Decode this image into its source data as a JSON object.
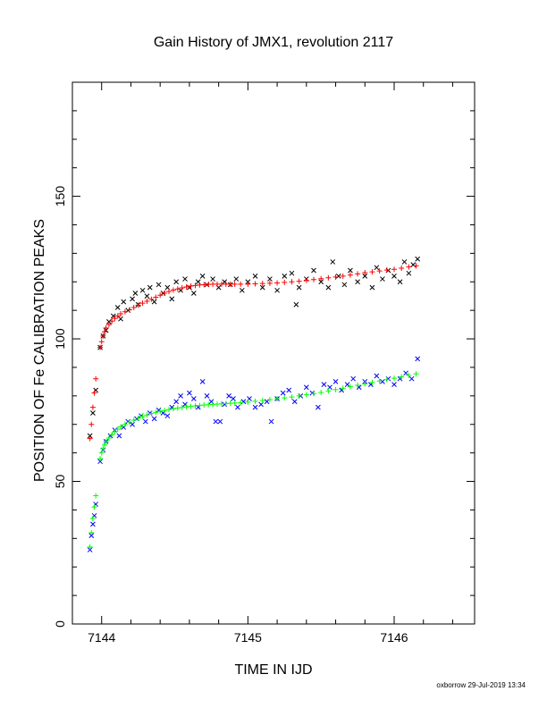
{
  "chart_data": {
    "type": "scatter",
    "title": "Gain History of JMX1, revolution 2117",
    "xlabel": "TIME IN IJD",
    "ylabel": "POSITION OF Fe CALIBRATION PEAKS",
    "xlim": [
      7143.8,
      7146.55
    ],
    "ylim": [
      0,
      190
    ],
    "x_ticks": [
      7144,
      7145,
      7146
    ],
    "y_ticks": [
      0,
      50,
      100,
      150
    ],
    "grid": false,
    "footer": "oxborrow 29-Jul-2019 13:34",
    "series": [
      {
        "marker": "x",
        "color": "#000000",
        "points": [
          [
            7143.92,
            66
          ],
          [
            7143.94,
            74
          ],
          [
            7143.96,
            82
          ],
          [
            7143.99,
            97
          ],
          [
            7144.01,
            101
          ],
          [
            7144.03,
            103
          ],
          [
            7144.05,
            106
          ],
          [
            7144.08,
            108
          ],
          [
            7144.11,
            111
          ],
          [
            7144.13,
            107
          ],
          [
            7144.15,
            113
          ],
          [
            7144.18,
            110
          ],
          [
            7144.21,
            114
          ],
          [
            7144.23,
            116
          ],
          [
            7144.25,
            112
          ],
          [
            7144.28,
            117
          ],
          [
            7144.31,
            115
          ],
          [
            7144.33,
            118
          ],
          [
            7144.36,
            113
          ],
          [
            7144.39,
            119
          ],
          [
            7144.42,
            116
          ],
          [
            7144.45,
            118
          ],
          [
            7144.48,
            114
          ],
          [
            7144.51,
            120
          ],
          [
            7144.54,
            117
          ],
          [
            7144.57,
            121
          ],
          [
            7144.6,
            118
          ],
          [
            7144.63,
            116
          ],
          [
            7144.66,
            120
          ],
          [
            7144.69,
            122
          ],
          [
            7144.72,
            119
          ],
          [
            7144.76,
            121
          ],
          [
            7144.8,
            118
          ],
          [
            7144.84,
            120
          ],
          [
            7144.88,
            119
          ],
          [
            7144.92,
            121
          ],
          [
            7144.96,
            117
          ],
          [
            7145.0,
            120
          ],
          [
            7145.05,
            122
          ],
          [
            7145.1,
            118
          ],
          [
            7145.15,
            121
          ],
          [
            7145.2,
            117
          ],
          [
            7145.25,
            122
          ],
          [
            7145.3,
            123
          ],
          [
            7145.33,
            112
          ],
          [
            7145.35,
            118
          ],
          [
            7145.4,
            121
          ],
          [
            7145.45,
            124
          ],
          [
            7145.5,
            120
          ],
          [
            7145.55,
            118
          ],
          [
            7145.58,
            127
          ],
          [
            7145.62,
            122
          ],
          [
            7145.66,
            119
          ],
          [
            7145.7,
            124
          ],
          [
            7145.75,
            120
          ],
          [
            7145.8,
            122
          ],
          [
            7145.85,
            118
          ],
          [
            7145.88,
            125
          ],
          [
            7145.92,
            121
          ],
          [
            7145.96,
            124
          ],
          [
            7146.0,
            122
          ],
          [
            7146.04,
            120
          ],
          [
            7146.07,
            127
          ],
          [
            7146.1,
            123
          ],
          [
            7146.13,
            126
          ],
          [
            7146.16,
            128
          ]
        ]
      },
      {
        "marker": "+",
        "color": "#ff0000",
        "points": [
          [
            7143.92,
            65
          ],
          [
            7143.93,
            70
          ],
          [
            7143.94,
            76
          ],
          [
            7143.95,
            81
          ],
          [
            7143.96,
            86
          ],
          [
            7143.99,
            97
          ],
          [
            7144.0,
            99
          ],
          [
            7144.01,
            101
          ],
          [
            7144.02,
            102.5
          ],
          [
            7144.03,
            103.8
          ],
          [
            7144.05,
            105
          ],
          [
            7144.07,
            106.2
          ],
          [
            7144.09,
            107.2
          ],
          [
            7144.11,
            108
          ],
          [
            7144.13,
            108.8
          ],
          [
            7144.16,
            109.5
          ],
          [
            7144.19,
            110.2
          ],
          [
            7144.22,
            111
          ],
          [
            7144.25,
            111.8
          ],
          [
            7144.28,
            112.5
          ],
          [
            7144.31,
            113.2
          ],
          [
            7144.34,
            113.9
          ],
          [
            7144.37,
            114.6
          ],
          [
            7144.4,
            115.3
          ],
          [
            7144.43,
            116
          ],
          [
            7144.46,
            116.6
          ],
          [
            7144.49,
            117.1
          ],
          [
            7144.52,
            117.5
          ],
          [
            7144.55,
            117.9
          ],
          [
            7144.58,
            118.2
          ],
          [
            7144.61,
            118.5
          ],
          [
            7144.64,
            118.7
          ],
          [
            7144.67,
            118.9
          ],
          [
            7144.7,
            119
          ],
          [
            7144.73,
            119.1
          ],
          [
            7144.76,
            119.2
          ],
          [
            7144.79,
            119.2
          ],
          [
            7144.82,
            119.2
          ],
          [
            7144.85,
            119.2
          ],
          [
            7144.88,
            119.2
          ],
          [
            7144.91,
            119.2
          ],
          [
            7144.95,
            119.2
          ],
          [
            7145.0,
            119.2
          ],
          [
            7145.05,
            119.3
          ],
          [
            7145.1,
            119.4
          ],
          [
            7145.15,
            119.5
          ],
          [
            7145.2,
            119.6
          ],
          [
            7145.25,
            119.8
          ],
          [
            7145.3,
            120
          ],
          [
            7145.35,
            120.2
          ],
          [
            7145.4,
            120.5
          ],
          [
            7145.45,
            120.8
          ],
          [
            7145.5,
            121.1
          ],
          [
            7145.55,
            121.4
          ],
          [
            7145.6,
            121.7
          ],
          [
            7145.65,
            122
          ],
          [
            7145.7,
            122.4
          ],
          [
            7145.75,
            122.8
          ],
          [
            7145.8,
            123.2
          ],
          [
            7145.85,
            123.5
          ],
          [
            7145.9,
            123.8
          ],
          [
            7145.95,
            124.1
          ],
          [
            7146.0,
            124.4
          ],
          [
            7146.05,
            124.8
          ],
          [
            7146.1,
            125.2
          ],
          [
            7146.15,
            125.6
          ]
        ]
      },
      {
        "marker": "x",
        "color": "#0000ff",
        "points": [
          [
            7143.92,
            26
          ],
          [
            7143.93,
            31
          ],
          [
            7143.94,
            35
          ],
          [
            7143.95,
            38
          ],
          [
            7143.96,
            42
          ],
          [
            7143.99,
            57
          ],
          [
            7144.01,
            61
          ],
          [
            7144.03,
            64
          ],
          [
            7144.06,
            66
          ],
          [
            7144.09,
            68
          ],
          [
            7144.12,
            66
          ],
          [
            7144.15,
            69
          ],
          [
            7144.18,
            71
          ],
          [
            7144.21,
            70
          ],
          [
            7144.24,
            72
          ],
          [
            7144.27,
            73
          ],
          [
            7144.3,
            71
          ],
          [
            7144.33,
            74
          ],
          [
            7144.36,
            72
          ],
          [
            7144.39,
            75
          ],
          [
            7144.42,
            74
          ],
          [
            7144.45,
            73
          ],
          [
            7144.48,
            76
          ],
          [
            7144.51,
            78
          ],
          [
            7144.54,
            80
          ],
          [
            7144.57,
            77
          ],
          [
            7144.6,
            81
          ],
          [
            7144.63,
            79
          ],
          [
            7144.66,
            76
          ],
          [
            7144.69,
            85
          ],
          [
            7144.72,
            80
          ],
          [
            7144.75,
            78
          ],
          [
            7144.78,
            71
          ],
          [
            7144.81,
            71
          ],
          [
            7144.84,
            77
          ],
          [
            7144.87,
            80
          ],
          [
            7144.9,
            79
          ],
          [
            7144.93,
            76
          ],
          [
            7144.97,
            78
          ],
          [
            7145.01,
            79
          ],
          [
            7145.05,
            76
          ],
          [
            7145.09,
            77
          ],
          [
            7145.13,
            78
          ],
          [
            7145.16,
            71
          ],
          [
            7145.2,
            79
          ],
          [
            7145.24,
            81
          ],
          [
            7145.28,
            82
          ],
          [
            7145.32,
            78
          ],
          [
            7145.36,
            80
          ],
          [
            7145.4,
            83
          ],
          [
            7145.44,
            81
          ],
          [
            7145.48,
            76
          ],
          [
            7145.52,
            84
          ],
          [
            7145.56,
            83
          ],
          [
            7145.6,
            85
          ],
          [
            7145.64,
            82
          ],
          [
            7145.68,
            84
          ],
          [
            7145.72,
            86
          ],
          [
            7145.76,
            83
          ],
          [
            7145.8,
            85
          ],
          [
            7145.84,
            84
          ],
          [
            7145.88,
            87
          ],
          [
            7145.92,
            85
          ],
          [
            7145.96,
            86
          ],
          [
            7146.0,
            84
          ],
          [
            7146.04,
            86
          ],
          [
            7146.08,
            88
          ],
          [
            7146.12,
            86
          ],
          [
            7146.16,
            93
          ]
        ]
      },
      {
        "marker": "+",
        "color": "#00ff00",
        "points": [
          [
            7143.92,
            27
          ],
          [
            7143.93,
            32
          ],
          [
            7143.94,
            37
          ],
          [
            7143.95,
            41
          ],
          [
            7143.96,
            45
          ],
          [
            7143.99,
            58
          ],
          [
            7144.0,
            60
          ],
          [
            7144.01,
            61.5
          ],
          [
            7144.02,
            62.8
          ],
          [
            7144.03,
            64
          ],
          [
            7144.05,
            65.2
          ],
          [
            7144.07,
            66.4
          ],
          [
            7144.09,
            67.4
          ],
          [
            7144.11,
            68.3
          ],
          [
            7144.13,
            69.1
          ],
          [
            7144.16,
            70
          ],
          [
            7144.19,
            70.8
          ],
          [
            7144.22,
            71.5
          ],
          [
            7144.25,
            72.2
          ],
          [
            7144.28,
            72.8
          ],
          [
            7144.31,
            73.3
          ],
          [
            7144.34,
            73.8
          ],
          [
            7144.37,
            74.2
          ],
          [
            7144.4,
            74.6
          ],
          [
            7144.43,
            74.9
          ],
          [
            7144.46,
            75.2
          ],
          [
            7144.49,
            75.5
          ],
          [
            7144.52,
            75.7
          ],
          [
            7144.55,
            75.9
          ],
          [
            7144.58,
            76.1
          ],
          [
            7144.61,
            76.3
          ],
          [
            7144.64,
            76.5
          ],
          [
            7144.67,
            76.6
          ],
          [
            7144.7,
            76.8
          ],
          [
            7144.73,
            76.9
          ],
          [
            7144.76,
            77
          ],
          [
            7144.79,
            77.1
          ],
          [
            7144.82,
            77.2
          ],
          [
            7144.85,
            77.3
          ],
          [
            7144.88,
            77.4
          ],
          [
            7144.91,
            77.5
          ],
          [
            7144.95,
            77.6
          ],
          [
            7145.0,
            77.8
          ],
          [
            7145.05,
            78.1
          ],
          [
            7145.1,
            78.4
          ],
          [
            7145.15,
            78.7
          ],
          [
            7145.2,
            79
          ],
          [
            7145.25,
            79.3
          ],
          [
            7145.3,
            79.6
          ],
          [
            7145.35,
            80
          ],
          [
            7145.4,
            80.4
          ],
          [
            7145.45,
            80.8
          ],
          [
            7145.5,
            81.2
          ],
          [
            7145.55,
            81.7
          ],
          [
            7145.6,
            82.2
          ],
          [
            7145.65,
            82.7
          ],
          [
            7145.7,
            83.2
          ],
          [
            7145.75,
            83.7
          ],
          [
            7145.8,
            84.2
          ],
          [
            7145.85,
            84.7
          ],
          [
            7145.9,
            85.2
          ],
          [
            7145.95,
            85.7
          ],
          [
            7146.0,
            86.2
          ],
          [
            7146.05,
            86.7
          ],
          [
            7146.1,
            87.2
          ],
          [
            7146.15,
            87.7
          ]
        ]
      }
    ]
  }
}
